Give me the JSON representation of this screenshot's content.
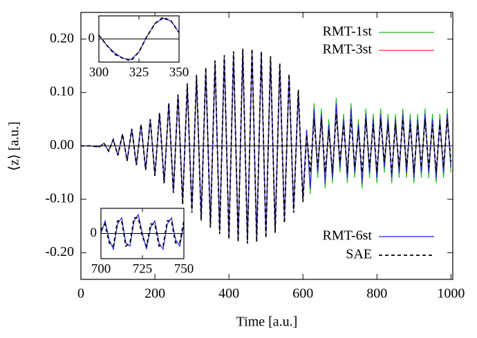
{
  "chart_data": [
    {
      "type": "line",
      "xlabel": "Time [a.u.]",
      "ylabel": "⟨z⟩ [a.u.]",
      "xlim": [
        0,
        1005
      ],
      "ylim": [
        -0.25,
        0.25
      ],
      "xticks": [
        0,
        200,
        400,
        600,
        800,
        1000
      ],
      "yticks": [
        {
          "value": 0.2,
          "label": "0.20"
        },
        {
          "value": 0.1,
          "label": "0.10"
        },
        {
          "value": 0,
          "label": "0.00"
        },
        {
          "value": -0.1,
          "label": "-0.10"
        },
        {
          "value": -0.2,
          "label": "-0.20"
        }
      ],
      "x": [
        0,
        25,
        50,
        62.5,
        75,
        87.5,
        100,
        112.5,
        125,
        137.5,
        150,
        162.5,
        175,
        187.5,
        200,
        212.5,
        225,
        237.5,
        250,
        262.5,
        275,
        287.5,
        300,
        312.5,
        325,
        337.5,
        350,
        362.5,
        375,
        387.5,
        400,
        412.5,
        425,
        437.5,
        450,
        462.5,
        475,
        487.5,
        500,
        512.5,
        525,
        537.5,
        550,
        562.5,
        575,
        587.5,
        600,
        610,
        620,
        630,
        640,
        650,
        660,
        670,
        680,
        690,
        700,
        710,
        720,
        730,
        740,
        750,
        760,
        770,
        780,
        790,
        800,
        810,
        820,
        830,
        840,
        850,
        860,
        870,
        880,
        890,
        900,
        910,
        920,
        930,
        940,
        950,
        960,
        970,
        980,
        990,
        1000
      ],
      "series": [
        {
          "name": "RMT-1st",
          "color": "#22bb22",
          "values": [
            0,
            0,
            -0.002,
            0.005,
            -0.01,
            0.012,
            -0.018,
            0.022,
            -0.028,
            0.032,
            -0.036,
            0.04,
            -0.045,
            0.05,
            -0.056,
            0.062,
            -0.07,
            0.08,
            -0.088,
            0.096,
            -0.105,
            0.112,
            -0.12,
            0.128,
            -0.135,
            0.142,
            -0.148,
            0.155,
            -0.16,
            0.165,
            -0.17,
            0.172,
            -0.175,
            0.177,
            -0.178,
            0.177,
            -0.175,
            0.172,
            -0.168,
            0.163,
            -0.158,
            0.15,
            -0.14,
            0.13,
            -0.12,
            0.1,
            -0.1,
            0.03,
            -0.09,
            0.08,
            -0.06,
            0.07,
            -0.08,
            0.05,
            -0.07,
            0.09,
            -0.05,
            0.06,
            -0.07,
            0.08,
            -0.06,
            0.05,
            -0.08,
            0.07,
            -0.06,
            0.06,
            -0.07,
            0.07,
            -0.05,
            0.06,
            -0.07,
            0.06,
            -0.06,
            0.07,
            -0.06,
            0.06,
            -0.07,
            0.06,
            -0.06,
            0.07,
            -0.06,
            0.06,
            -0.07,
            0.06,
            -0.06,
            0.07,
            -0.05
          ]
        },
        {
          "name": "RMT-3st",
          "color": "#ff3333",
          "values": [
            0,
            0,
            -0.002,
            0.005,
            -0.01,
            0.012,
            -0.018,
            0.022,
            -0.028,
            0.032,
            -0.036,
            0.04,
            -0.045,
            0.05,
            -0.056,
            0.062,
            -0.07,
            0.08,
            -0.088,
            0.096,
            -0.105,
            0.112,
            -0.12,
            0.128,
            -0.135,
            0.142,
            -0.148,
            0.155,
            -0.16,
            0.165,
            -0.17,
            0.172,
            -0.175,
            0.177,
            -0.178,
            0.177,
            -0.175,
            0.172,
            -0.168,
            0.163,
            -0.158,
            0.15,
            -0.14,
            0.13,
            -0.12,
            0.1,
            -0.1,
            0.03,
            -0.08,
            0.07,
            -0.05,
            0.06,
            -0.07,
            0.04,
            -0.06,
            0.08,
            -0.04,
            0.05,
            -0.06,
            0.07,
            -0.05,
            0.04,
            -0.07,
            0.06,
            -0.05,
            0.05,
            -0.06,
            0.06,
            -0.04,
            0.05,
            -0.06,
            0.05,
            -0.05,
            0.06,
            -0.05,
            0.05,
            -0.06,
            0.05,
            -0.05,
            0.06,
            -0.05,
            0.05,
            -0.06,
            0.05,
            -0.05,
            0.06,
            -0.04
          ]
        },
        {
          "name": "RMT-6st",
          "color": "#2222ee",
          "values": [
            0,
            0,
            -0.002,
            0.005,
            -0.01,
            0.012,
            -0.018,
            0.022,
            -0.028,
            0.032,
            -0.036,
            0.04,
            -0.045,
            0.05,
            -0.056,
            0.062,
            -0.07,
            0.08,
            -0.088,
            0.096,
            -0.105,
            0.112,
            -0.12,
            0.128,
            -0.135,
            0.142,
            -0.148,
            0.155,
            -0.16,
            0.165,
            -0.17,
            0.172,
            -0.175,
            0.177,
            -0.178,
            0.177,
            -0.175,
            0.172,
            -0.168,
            0.163,
            -0.158,
            0.15,
            -0.14,
            0.13,
            -0.12,
            0.1,
            -0.1,
            0.03,
            -0.08,
            0.07,
            -0.05,
            0.06,
            -0.07,
            0.04,
            -0.06,
            0.08,
            -0.04,
            0.05,
            -0.06,
            0.07,
            -0.05,
            0.04,
            -0.07,
            0.06,
            -0.05,
            0.05,
            -0.06,
            0.06,
            -0.04,
            0.05,
            -0.06,
            0.05,
            -0.05,
            0.06,
            -0.05,
            0.05,
            -0.06,
            0.05,
            -0.05,
            0.06,
            -0.05,
            0.05,
            -0.06,
            0.05,
            -0.05,
            0.06,
            -0.04
          ]
        },
        {
          "name": "SAE",
          "color": "#000000",
          "dashed": true,
          "values": [
            0,
            0,
            -0.002,
            0.005,
            -0.01,
            0.012,
            -0.018,
            0.022,
            -0.028,
            0.032,
            -0.036,
            0.04,
            -0.045,
            0.05,
            -0.056,
            0.062,
            -0.07,
            0.08,
            -0.088,
            0.096,
            -0.11,
            0.117,
            -0.125,
            0.133,
            -0.14,
            0.147,
            -0.153,
            0.16,
            -0.165,
            0.17,
            -0.175,
            0.177,
            -0.18,
            0.182,
            -0.183,
            0.182,
            -0.18,
            0.177,
            -0.173,
            0.168,
            -0.163,
            0.155,
            -0.145,
            0.135,
            -0.125,
            0.105,
            -0.105,
            0.02,
            -0.05,
            0.05,
            -0.04,
            0.05,
            -0.05,
            0.03,
            -0.05,
            0.06,
            -0.03,
            0.04,
            -0.05,
            0.05,
            -0.04,
            0.03,
            -0.05,
            0.05,
            -0.04,
            0.04,
            -0.05,
            0.05,
            -0.03,
            0.04,
            -0.05,
            0.04,
            -0.04,
            0.05,
            -0.04,
            0.04,
            -0.05,
            0.04,
            -0.04,
            0.05,
            -0.04,
            0.04,
            -0.05,
            0.04,
            -0.04,
            0.05,
            -0.03
          ]
        }
      ]
    },
    {
      "type": "line",
      "xlim": [
        300,
        350
      ],
      "ylim": [
        -0.18,
        0.18
      ],
      "xticks": [
        300,
        325,
        350
      ],
      "yticks": [
        0
      ],
      "x": [
        300,
        305,
        310,
        315,
        320,
        325,
        330,
        335,
        340,
        345,
        350
      ],
      "series": [
        {
          "color": "#2222ee",
          "values": [
            0.03,
            -0.05,
            -0.11,
            -0.15,
            -0.16,
            -0.1,
            0.02,
            0.12,
            0.16,
            0.14,
            0.05
          ]
        },
        {
          "color": "#000000",
          "dashed": true,
          "values": [
            0.03,
            -0.05,
            -0.12,
            -0.15,
            -0.17,
            -0.1,
            0.02,
            0.12,
            0.17,
            0.14,
            0.05
          ]
        }
      ]
    },
    {
      "type": "line",
      "xlim": [
        700,
        750
      ],
      "ylim": [
        -0.08,
        0.08
      ],
      "xticks": [
        700,
        725,
        750
      ],
      "yticks": [
        0
      ],
      "x": [
        700,
        702.5,
        705,
        707.5,
        710,
        712.5,
        715,
        717.5,
        720,
        722.5,
        725,
        727.5,
        730,
        732.5,
        735,
        737.5,
        740,
        742.5,
        745,
        747.5,
        750
      ],
      "series": [
        {
          "color": "#2222ee",
          "values": [
            0,
            0.04,
            -0.02,
            -0.05,
            0.03,
            0.05,
            -0.03,
            -0.04,
            0.04,
            0.06,
            0,
            -0.05,
            0.02,
            0.04,
            -0.03,
            -0.05,
            0.03,
            0.05,
            -0.02,
            -0.04,
            0.03
          ]
        },
        {
          "color": "#000000",
          "dashed": true,
          "values": [
            0.01,
            0.03,
            -0.03,
            -0.04,
            0.04,
            0.04,
            -0.04,
            -0.03,
            0.05,
            0.05,
            -0.01,
            -0.04,
            0.03,
            0.03,
            -0.04,
            -0.04,
            0.04,
            0.04,
            -0.03,
            -0.03,
            0.04
          ]
        }
      ]
    }
  ]
}
